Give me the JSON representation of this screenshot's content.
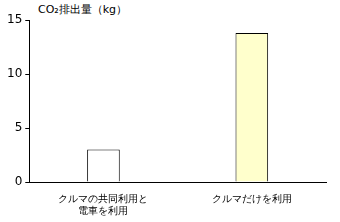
{
  "chart_data": {
    "type": "bar",
    "y_label": "CO₂排出量（kg）",
    "categories": [
      "クルマの共同利用と\n電車を利用",
      "クルマだけを利用"
    ],
    "values": [
      3,
      13.8
    ],
    "colors": [
      "#ffffff",
      "#ffffcc"
    ],
    "ylim": [
      0,
      15
    ],
    "yticks": [
      0,
      5,
      10,
      15
    ],
    "grid": false
  }
}
